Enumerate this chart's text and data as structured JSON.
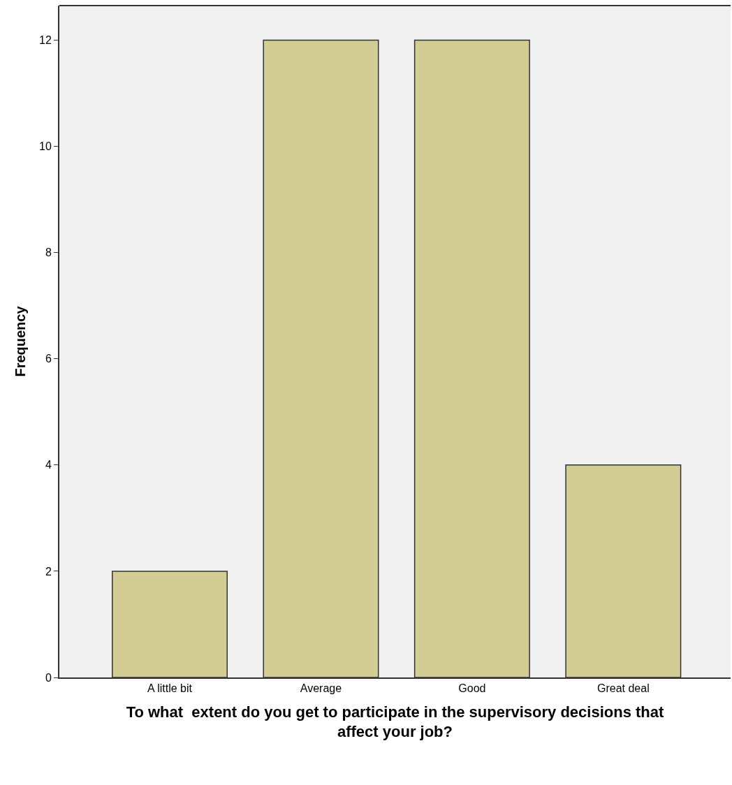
{
  "chart_data": {
    "type": "bar",
    "xlabel": "To what  extent do you get to participate in the supervisory decisions that\naffect your job?",
    "ylabel": "Frequency",
    "categories": [
      "A little bit",
      "Average",
      "Good",
      "Great deal"
    ],
    "values": [
      2,
      12,
      12,
      4
    ],
    "color": "#d3cd95",
    "ylim": [
      0,
      12.65
    ],
    "yticks": [
      0,
      2,
      4,
      6,
      8,
      10,
      12
    ],
    "grid": false,
    "legend": false
  }
}
